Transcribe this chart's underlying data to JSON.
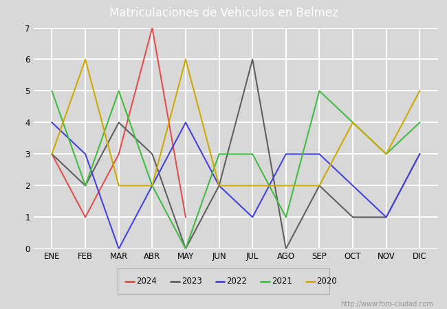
{
  "title": "Matriculaciones de Vehiculos en Belmez",
  "title_bg_color": "#5b9bd5",
  "title_text_color": "white",
  "months": [
    "ENE",
    "FEB",
    "MAR",
    "ABR",
    "MAY",
    "JUN",
    "JUL",
    "AGO",
    "SEP",
    "OCT",
    "NOV",
    "DIC"
  ],
  "series": {
    "2024": {
      "color": "#e05050",
      "data": [
        3,
        1,
        3,
        7,
        1,
        null,
        null,
        null,
        null,
        null,
        null,
        null
      ]
    },
    "2023": {
      "color": "#606060",
      "data": [
        3,
        2,
        4,
        3,
        0,
        2,
        6,
        0,
        2,
        1,
        1,
        3
      ]
    },
    "2022": {
      "color": "#4444dd",
      "data": [
        4,
        3,
        0,
        2,
        4,
        2,
        1,
        3,
        3,
        2,
        1,
        3
      ]
    },
    "2021": {
      "color": "#44bb44",
      "data": [
        5,
        2,
        5,
        2,
        0,
        3,
        3,
        1,
        5,
        4,
        3,
        4
      ]
    },
    "2020": {
      "color": "#ccaa00",
      "data": [
        3,
        6,
        2,
        2,
        6,
        2,
        2,
        2,
        2,
        4,
        3,
        5
      ]
    }
  },
  "ylim": [
    0.0,
    7.0
  ],
  "yticks": [
    0.0,
    1.0,
    2.0,
    3.0,
    4.0,
    5.0,
    6.0,
    7.0
  ],
  "bg_color": "#d8d8d8",
  "plot_bg_color": "#d8d8d8",
  "grid_color": "white",
  "watermark": "http://www.foro-ciudad.com",
  "legend_years": [
    "2024",
    "2023",
    "2022",
    "2021",
    "2020"
  ],
  "figsize": [
    6.5,
    4.5
  ],
  "dpi": 100
}
